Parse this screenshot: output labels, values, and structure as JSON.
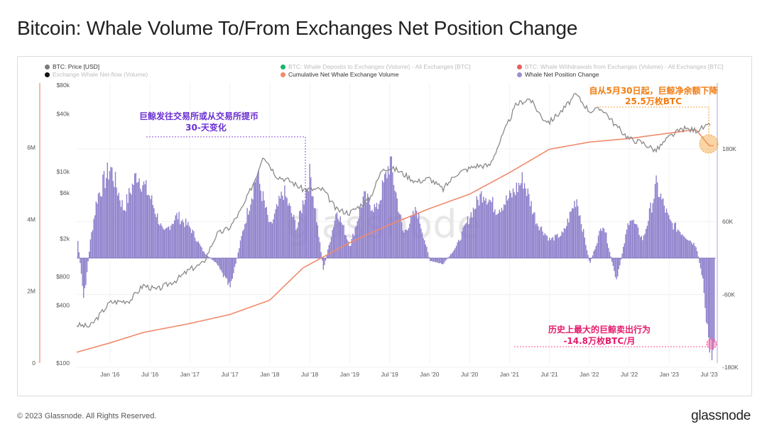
{
  "title": "Bitcoin: Whale Volume To/From Exchanges Net Position Change",
  "legend": [
    {
      "label": "BTC: Price [USD]",
      "color": "#7a7a7a",
      "active": true
    },
    {
      "label": "BTC: Whale Deposits to Exchanges (Volume) - All Exchanges [BTC]",
      "color": "#19b36b",
      "active": false
    },
    {
      "label": "BTC: Whale Withdrawals from Exchanges (Volume) - All Exchanges [BTC]",
      "color": "#e85d5d",
      "active": false
    },
    {
      "label": "Exchange Whale Net-flow (Volume)",
      "color": "#111111",
      "active": false
    },
    {
      "label": "Cumulative Net Whale Exchange Volume",
      "color": "#f08a6c",
      "active": true
    },
    {
      "label": "Whale Net Position Change",
      "color": "#9b8fd0",
      "active": true
    }
  ],
  "annotations": {
    "top_left_line1": "巨鲸发往交易所或从交易所提币",
    "top_left_line2": "30-天变化",
    "top_right_line1": "自从5月30日起，巨鲸净余额下降",
    "top_right_line2": "25.5万枚BTC",
    "bottom_right_line1": "历史上最大的巨鲸卖出行为",
    "bottom_right_line2": "-14.8万枚BTC/月"
  },
  "watermark": "glassnode",
  "footer": "© 2023 Glassnode. All Rights Reserved.",
  "brand": "glassnode",
  "colors": {
    "price": "#8a8a8a",
    "cumulative": "#f08a6c",
    "net_change": "#8878c8",
    "purple_text": "#6a2fd3",
    "orange_text": "#f07c12",
    "pink_text": "#e5196b"
  },
  "chart_data": {
    "type": "line",
    "x_axis": {
      "ticks": [
        "Jan '16",
        "Jul '16",
        "Jan '17",
        "Jul '17",
        "Jan '18",
        "Jul '18",
        "Jan '19",
        "Jul '19",
        "Jan '20",
        "Jul '20",
        "Jan '21",
        "Jul '21",
        "Jan '22",
        "Jul '22",
        "Jan '23",
        "Jul '23"
      ]
    },
    "left_axis_cumulative": {
      "ticks": [
        "0",
        "2M",
        "4M",
        "6M"
      ],
      "range": [
        0,
        6000000
      ]
    },
    "left_axis_price": {
      "scale": "log",
      "ticks": [
        "$100",
        "$400",
        "$800",
        "$2k",
        "$6k",
        "$10k",
        "$40k",
        "$80k"
      ],
      "range": [
        100,
        80000
      ]
    },
    "right_axis": {
      "ticks": [
        "180K",
        "60K",
        "-60K",
        "-180K"
      ],
      "range": [
        -180000,
        180000
      ]
    },
    "series": [
      {
        "name": "BTC: Price [USD]",
        "x": [
          "2015-08",
          "2015-10",
          "2016-01",
          "2016-04",
          "2016-06",
          "2016-08",
          "2016-11",
          "2017-01",
          "2017-03",
          "2017-05",
          "2017-07",
          "2017-09",
          "2017-11",
          "2017-12",
          "2018-02",
          "2018-04",
          "2018-06",
          "2018-09",
          "2018-11",
          "2019-01",
          "2019-04",
          "2019-06",
          "2019-08",
          "2019-11",
          "2020-01",
          "2020-03",
          "2020-05",
          "2020-08",
          "2020-10",
          "2020-12",
          "2021-02",
          "2021-04",
          "2021-06",
          "2021-07",
          "2021-09",
          "2021-11",
          "2022-01",
          "2022-03",
          "2022-05",
          "2022-07",
          "2022-09",
          "2022-11",
          "2023-01",
          "2023-03",
          "2023-05",
          "2023-07"
        ],
        "values": [
          250,
          240,
          430,
          450,
          650,
          580,
          740,
          950,
          1100,
          2200,
          2600,
          4300,
          9000,
          15000,
          9000,
          8000,
          6500,
          6500,
          4000,
          3700,
          5200,
          11000,
          10500,
          7800,
          8500,
          6500,
          9500,
          11500,
          11500,
          24000,
          50000,
          58000,
          36000,
          33000,
          44000,
          64000,
          43000,
          45000,
          30000,
          22000,
          20000,
          16500,
          23000,
          28000,
          27000,
          30000
        ]
      },
      {
        "name": "Cumulative Net Whale Exchange Volume",
        "x": [
          "2015-08",
          "2016-01",
          "2016-06",
          "2017-01",
          "2017-07",
          "2018-01",
          "2018-06",
          "2019-01",
          "2019-07",
          "2020-01",
          "2020-07",
          "2021-01",
          "2021-07",
          "2022-01",
          "2022-07",
          "2023-01",
          "2023-05",
          "2023-07"
        ],
        "values": [
          300000,
          560000,
          850000,
          1100000,
          1350000,
          1750000,
          2650000,
          3350000,
          3850000,
          4300000,
          4700000,
          5300000,
          5950000,
          6150000,
          6250000,
          6400000,
          6500000,
          6050000
        ]
      },
      {
        "name": "Whale Net Position Change",
        "x": [
          "2015-08",
          "2015-09",
          "2015-10",
          "2015-11",
          "2016-01",
          "2016-03",
          "2016-05",
          "2016-07",
          "2016-09",
          "2016-11",
          "2017-01",
          "2017-03",
          "2017-05",
          "2017-07",
          "2017-09",
          "2017-11",
          "2018-01",
          "2018-03",
          "2018-05",
          "2018-07",
          "2018-09",
          "2018-11",
          "2019-01",
          "2019-03",
          "2019-05",
          "2019-07",
          "2019-09",
          "2019-11",
          "2020-01",
          "2020-03",
          "2020-05",
          "2020-07",
          "2020-09",
          "2020-11",
          "2021-01",
          "2021-03",
          "2021-05",
          "2021-07",
          "2021-09",
          "2021-11",
          "2022-01",
          "2022-03",
          "2022-05",
          "2022-07",
          "2022-09",
          "2022-11",
          "2023-01",
          "2023-03",
          "2023-05",
          "2023-06",
          "2023-07"
        ],
        "values": [
          40000,
          -70000,
          30000,
          100000,
          150000,
          80000,
          140000,
          100000,
          40000,
          70000,
          50000,
          10000,
          -10000,
          -50000,
          50000,
          140000,
          50000,
          110000,
          50000,
          140000,
          -20000,
          80000,
          20000,
          100000,
          80000,
          160000,
          40000,
          80000,
          -5000,
          -10000,
          20000,
          70000,
          110000,
          80000,
          100000,
          130000,
          60000,
          30000,
          40000,
          100000,
          -10000,
          60000,
          -40000,
          70000,
          30000,
          120000,
          60000,
          40000,
          20000,
          -40000,
          -150000
        ]
      }
    ]
  }
}
